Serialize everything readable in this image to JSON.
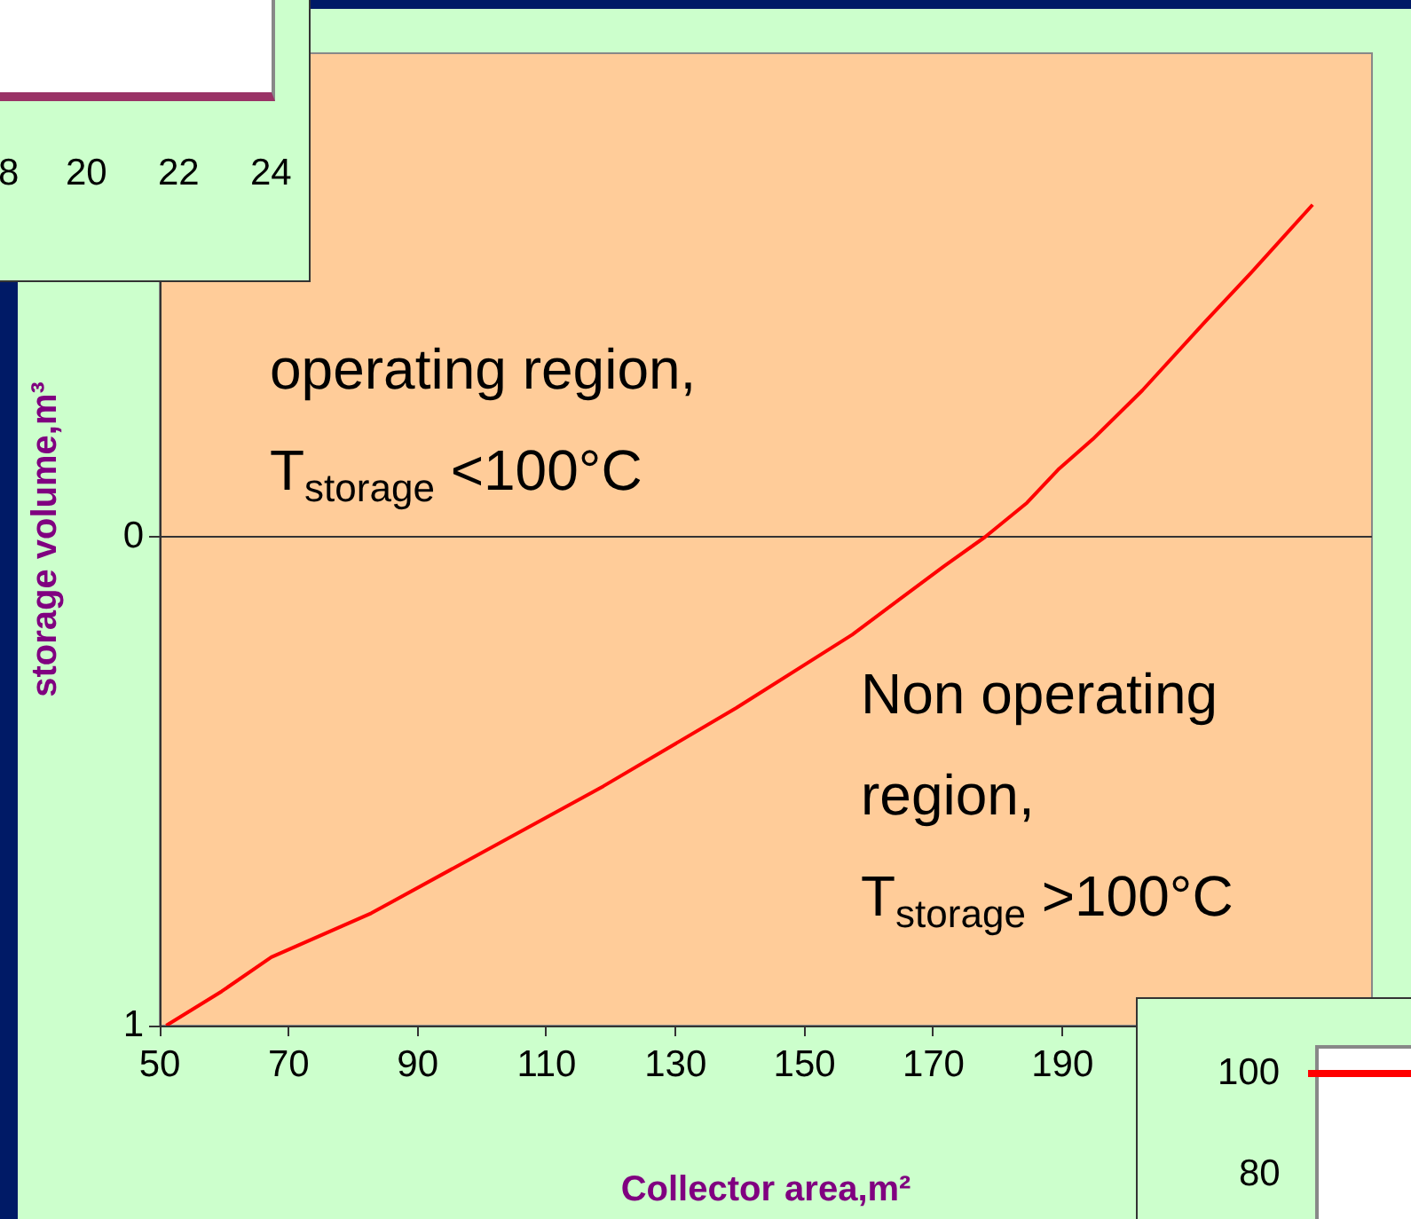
{
  "chart_data": [
    {
      "type": "line",
      "xlabel": "Collector area,m²",
      "ylabel": "storage volume,m³",
      "x": [
        51,
        59.6,
        67.3,
        82.8,
        118.8,
        139.4,
        157.4,
        171.6,
        178,
        184.5,
        189.5,
        194.7,
        202.4,
        212.1,
        219.2,
        228.8
      ],
      "series": [
        {
          "color": "#ff0000",
          "values": [
            1,
            0.93,
            0.86,
            0.77,
            0.51,
            0.35,
            0.2,
            0.06,
            0,
            -0.07,
            -0.14,
            -0.2,
            -0.3,
            -0.44,
            -0.54,
            -0.68
          ]
        }
      ],
      "xlim": [
        50,
        238
      ],
      "xticks": [
        50,
        70,
        90,
        110,
        130,
        150,
        170,
        190
      ],
      "ylim": [
        1,
        -0.99
      ],
      "yticks": [
        0,
        1
      ],
      "grid": "y",
      "marker": "none",
      "line_style": "solid",
      "legend": false,
      "annotations": [
        "operating region,\nT$_{storage}$ <100°C",
        "Non operating\nregion,\nT$_{storage}$ >100°C"
      ]
    },
    {
      "type": "other",
      "annotations": [
        "8",
        "20",
        "22",
        "24"
      ]
    },
    {
      "type": "other",
      "annotations": [
        "100",
        "80"
      ]
    }
  ]
}
